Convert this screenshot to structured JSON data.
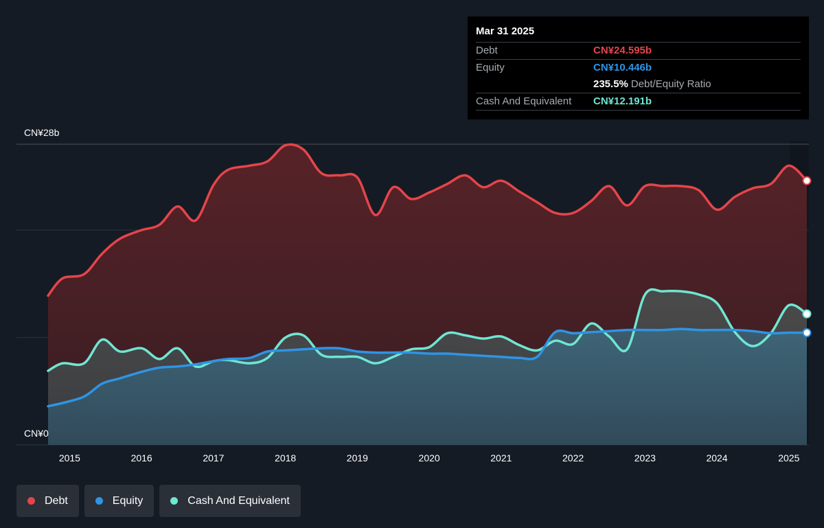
{
  "tooltip": {
    "date": "Mar 31 2025",
    "debt_label": "Debt",
    "debt_value": "CN¥24.595b",
    "equity_label": "Equity",
    "equity_value": "CN¥10.446b",
    "ratio_value": "235.5%",
    "ratio_label": "Debt/Equity Ratio",
    "cash_label": "Cash And Equivalent",
    "cash_value": "CN¥12.191b"
  },
  "legend": {
    "debt": "Debt",
    "equity": "Equity",
    "cash": "Cash And Equivalent"
  },
  "colors": {
    "debt": "#e5454a",
    "equity": "#2f94e4",
    "cash": "#6fe6d2",
    "background": "#151b24"
  },
  "chart_data": {
    "type": "area",
    "y_tick_labels": [
      "CN¥0",
      "CN¥28b"
    ],
    "ylim": [
      0,
      28
    ],
    "xlim": [
      2014.7,
      2025.25
    ],
    "x_tick_labels": [
      "2015",
      "2016",
      "2017",
      "2018",
      "2019",
      "2020",
      "2021",
      "2022",
      "2023",
      "2024",
      "2025"
    ],
    "x_ticks": [
      2015,
      2016,
      2017,
      2018,
      2019,
      2020,
      2021,
      2022,
      2023,
      2024,
      2025
    ],
    "grid": true,
    "legend_position": "bottom-left",
    "series": [
      {
        "name": "Debt",
        "x": [
          2014.7,
          2014.9,
          2015.2,
          2015.45,
          2015.7,
          2016.0,
          2016.25,
          2016.5,
          2016.75,
          2017.0,
          2017.2,
          2017.5,
          2017.75,
          2018.0,
          2018.25,
          2018.5,
          2018.75,
          2019.0,
          2019.25,
          2019.5,
          2019.75,
          2020.0,
          2020.25,
          2020.5,
          2020.75,
          2021.0,
          2021.25,
          2021.5,
          2021.75,
          2022.0,
          2022.25,
          2022.5,
          2022.75,
          2023.0,
          2023.25,
          2023.5,
          2023.75,
          2024.0,
          2024.25,
          2024.5,
          2024.75,
          2025.0,
          2025.25
        ],
        "values": [
          13.9,
          15.5,
          15.9,
          17.8,
          19.2,
          20.0,
          20.5,
          22.2,
          20.9,
          24.2,
          25.6,
          26.0,
          26.4,
          27.9,
          27.5,
          25.3,
          25.1,
          24.9,
          21.4,
          24.0,
          22.9,
          23.5,
          24.3,
          25.1,
          24.0,
          24.6,
          23.6,
          22.6,
          21.6,
          21.6,
          22.7,
          24.1,
          22.3,
          24.1,
          24.1,
          24.1,
          23.7,
          21.9,
          23.1,
          23.9,
          24.3,
          26.0,
          24.6
        ]
      },
      {
        "name": "Equity",
        "x": [
          2014.7,
          2014.9,
          2015.2,
          2015.45,
          2015.7,
          2016.0,
          2016.25,
          2016.5,
          2016.75,
          2017.0,
          2017.2,
          2017.5,
          2017.75,
          2018.0,
          2018.25,
          2018.5,
          2018.75,
          2019.0,
          2019.25,
          2019.5,
          2019.75,
          2020.0,
          2020.25,
          2020.5,
          2020.75,
          2021.0,
          2021.25,
          2021.5,
          2021.75,
          2022.0,
          2022.25,
          2022.5,
          2022.75,
          2023.0,
          2023.25,
          2023.5,
          2023.75,
          2024.0,
          2024.25,
          2024.5,
          2024.75,
          2025.0,
          2025.25
        ],
        "values": [
          3.6,
          3.9,
          4.5,
          5.7,
          6.2,
          6.8,
          7.2,
          7.3,
          7.5,
          7.8,
          8.0,
          8.1,
          8.7,
          8.8,
          8.9,
          9.0,
          9.0,
          8.7,
          8.6,
          8.6,
          8.6,
          8.5,
          8.5,
          8.4,
          8.3,
          8.2,
          8.1,
          8.2,
          10.5,
          10.4,
          10.5,
          10.6,
          10.7,
          10.7,
          10.7,
          10.8,
          10.7,
          10.7,
          10.7,
          10.6,
          10.4,
          10.45,
          10.45
        ]
      },
      {
        "name": "Cash And Equivalent",
        "x": [
          2014.7,
          2014.9,
          2015.2,
          2015.45,
          2015.7,
          2016.0,
          2016.25,
          2016.5,
          2016.75,
          2017.0,
          2017.2,
          2017.5,
          2017.75,
          2018.0,
          2018.25,
          2018.5,
          2018.75,
          2019.0,
          2019.25,
          2019.5,
          2019.75,
          2020.0,
          2020.25,
          2020.5,
          2020.75,
          2021.0,
          2021.25,
          2021.5,
          2021.75,
          2022.0,
          2022.25,
          2022.5,
          2022.75,
          2023.0,
          2023.25,
          2023.5,
          2023.75,
          2024.0,
          2024.25,
          2024.5,
          2024.75,
          2025.0,
          2025.25
        ],
        "values": [
          6.9,
          7.6,
          7.6,
          9.8,
          8.7,
          9.0,
          8.0,
          9.0,
          7.3,
          7.8,
          7.9,
          7.6,
          8.1,
          10.0,
          10.2,
          8.4,
          8.2,
          8.2,
          7.6,
          8.2,
          8.9,
          9.1,
          10.4,
          10.2,
          9.9,
          10.1,
          9.3,
          8.8,
          9.7,
          9.4,
          11.3,
          10.1,
          8.9,
          14.0,
          14.3,
          14.3,
          14.0,
          13.2,
          10.5,
          9.2,
          10.4,
          13.0,
          12.2
        ]
      }
    ]
  }
}
